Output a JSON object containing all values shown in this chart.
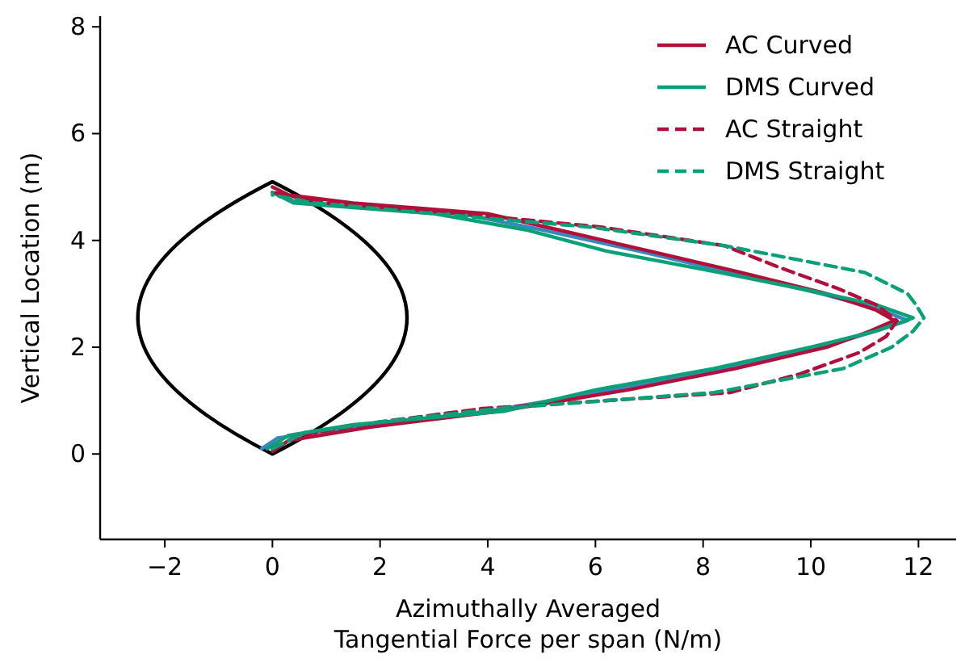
{
  "chart_data": {
    "type": "line",
    "xlabel": "Azimuthally Averaged\nTangential Force per span (N/m)",
    "ylabel": "Vertical Location (m)",
    "xlim": [
      -3.2,
      12.7
    ],
    "ylim": [
      -1.6,
      8.2
    ],
    "xticks": [
      {
        "value": -2,
        "label": "−2"
      },
      0,
      2,
      4,
      6,
      8,
      10,
      12
    ],
    "yticks": [
      0,
      2,
      4,
      6,
      8
    ],
    "grid": false,
    "legend": "top right",
    "marker": "none",
    "series": [
      {
        "color": "#3a87be",
        "line_style": "solid",
        "x": [
          -0.2,
          0.1,
          1.5,
          4.0,
          6.3,
          8.4,
          10.2,
          11.2,
          11.8,
          11.3,
          10.2,
          8.5,
          6.8,
          5.0,
          3.5,
          0.5,
          0.0
        ],
        "values": [
          0.1,
          0.3,
          0.5,
          0.8,
          1.2,
          1.6,
          2.0,
          2.3,
          2.5,
          2.7,
          3.0,
          3.4,
          3.8,
          4.2,
          4.5,
          4.7,
          4.9
        ]
      },
      {
        "name": "AC Curved",
        "color": "#b0103a",
        "line_style": "solid",
        "x": [
          0.0,
          0.3,
          1.8,
          4.2,
          6.6,
          8.6,
          10.3,
          11.1,
          11.55,
          11.2,
          10.3,
          8.7,
          7.0,
          5.3,
          4.0,
          1.5,
          0.3,
          0.0
        ],
        "values": [
          0.05,
          0.25,
          0.5,
          0.8,
          1.2,
          1.6,
          2.0,
          2.3,
          2.5,
          2.7,
          3.0,
          3.4,
          3.8,
          4.2,
          4.5,
          4.7,
          4.85,
          5.0
        ]
      },
      {
        "name": "DMS Curved",
        "color": "#0aa078",
        "line_style": "solid",
        "x": [
          -0.1,
          0.3,
          1.5,
          4.3,
          6.0,
          8.2,
          10.0,
          11.2,
          11.9,
          11.2,
          9.8,
          8.3,
          6.2,
          4.7,
          3.0,
          0.4,
          0.0
        ],
        "values": [
          0.1,
          0.35,
          0.55,
          0.8,
          1.2,
          1.6,
          2.0,
          2.3,
          2.55,
          2.8,
          3.1,
          3.4,
          3.8,
          4.2,
          4.5,
          4.7,
          4.9
        ]
      },
      {
        "name": "AC Straight",
        "color": "#b0103a",
        "line_style": "dashed",
        "x": [
          0.0,
          0.5,
          2.0,
          3.9,
          8.5,
          9.8,
          10.9,
          11.4,
          11.6,
          11.2,
          10.5,
          9.4,
          8.4,
          6.1,
          3.5,
          1.0,
          0.0
        ],
        "values": [
          0.1,
          0.35,
          0.6,
          0.85,
          1.15,
          1.5,
          1.9,
          2.2,
          2.5,
          2.8,
          3.1,
          3.5,
          3.9,
          4.25,
          4.5,
          4.7,
          4.9
        ]
      },
      {
        "name": "DMS Straight",
        "color": "#0aa078",
        "line_style": "dashed",
        "x": [
          0.0,
          0.6,
          2.0,
          4.2,
          8.2,
          10.6,
          11.5,
          11.9,
          12.1,
          11.95,
          11.8,
          11.0,
          8.4,
          5.9,
          3.0,
          0.8,
          0.0
        ],
        "values": [
          0.1,
          0.4,
          0.6,
          0.85,
          1.15,
          1.6,
          2.0,
          2.3,
          2.55,
          2.8,
          3.0,
          3.4,
          3.9,
          4.25,
          4.5,
          4.7,
          4.85
        ]
      }
    ]
  }
}
